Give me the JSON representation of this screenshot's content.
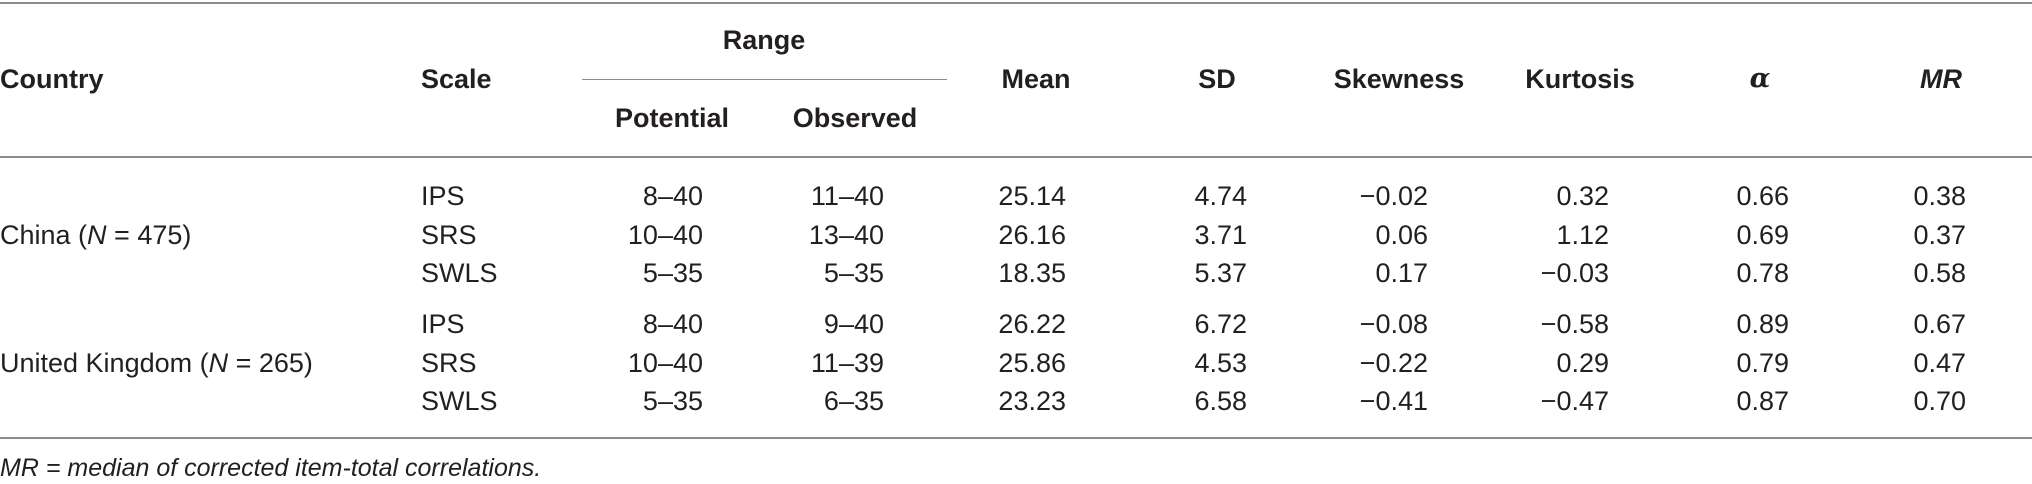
{
  "headers": {
    "country": "Country",
    "scale": "Scale",
    "range": "Range",
    "potential": "Potential",
    "observed": "Observed",
    "mean": "Mean",
    "sd": "SD",
    "skewness": "Skewness",
    "kurtosis": "Kurtosis",
    "alpha": "α",
    "mr": "MR"
  },
  "groups": [
    {
      "country_prefix": "China (",
      "n_symbol": "N",
      "country_suffix": " = 475)",
      "rows": [
        {
          "scale": "IPS",
          "potential": "8–40",
          "observed": "11–40",
          "mean": "25.14",
          "sd": "4.74",
          "skewness": "−0.02",
          "kurtosis": "0.32",
          "alpha": "0.66",
          "mr": "0.38"
        },
        {
          "scale": "SRS",
          "potential": "10–40",
          "observed": "13–40",
          "mean": "26.16",
          "sd": "3.71",
          "skewness": "0.06",
          "kurtosis": "1.12",
          "alpha": "0.69",
          "mr": "0.37"
        },
        {
          "scale": "SWLS",
          "potential": "5–35",
          "observed": "5–35",
          "mean": "18.35",
          "sd": "5.37",
          "skewness": "0.17",
          "kurtosis": "−0.03",
          "alpha": "0.78",
          "mr": "0.58"
        }
      ]
    },
    {
      "country_prefix": "United Kingdom (",
      "n_symbol": "N",
      "country_suffix": " = 265)",
      "rows": [
        {
          "scale": "IPS",
          "potential": "8–40",
          "observed": "9–40",
          "mean": "26.22",
          "sd": "6.72",
          "skewness": "−0.08",
          "kurtosis": "−0.58",
          "alpha": "0.89",
          "mr": "0.67"
        },
        {
          "scale": "SRS",
          "potential": "10–40",
          "observed": "11–39",
          "mean": "25.86",
          "sd": "4.53",
          "skewness": "−0.22",
          "kurtosis": "0.29",
          "alpha": "0.79",
          "mr": "0.47"
        },
        {
          "scale": "SWLS",
          "potential": "5–35",
          "observed": "6–35",
          "mean": "23.23",
          "sd": "6.58",
          "skewness": "−0.41",
          "kurtosis": "−0.47",
          "alpha": "0.87",
          "mr": "0.70"
        }
      ]
    }
  ],
  "footnote": {
    "abbr": "MR",
    "text": " = median of corrected item-total correlations."
  }
}
